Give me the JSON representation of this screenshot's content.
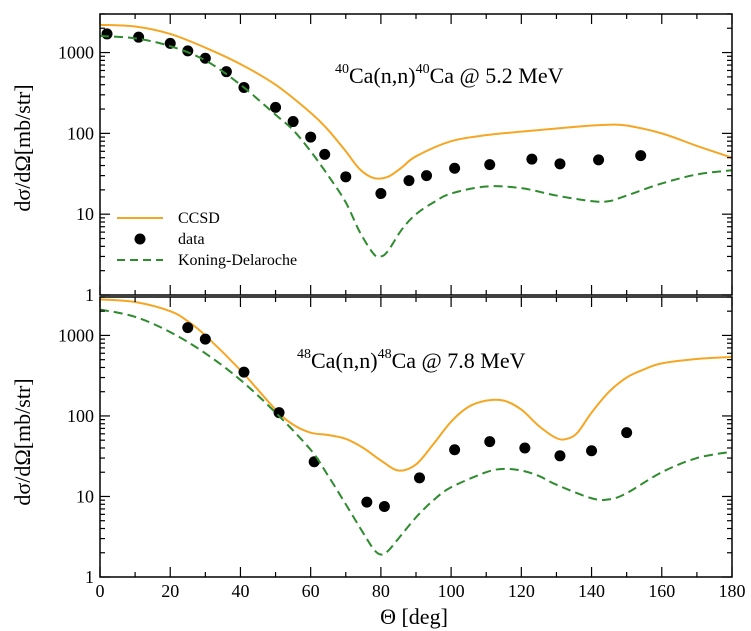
{
  "chart_data": [
    {
      "type": "line",
      "title_parts": {
        "a_mass": "40",
        "a_text": "Ca(n,n)",
        "b_mass": "40",
        "b_text": "Ca @ 5.2 MeV"
      },
      "xlabel": "",
      "ylabel": "dσ/dΩ[mb/str]",
      "xlim": [
        0,
        180
      ],
      "ylim": [
        1,
        3000
      ],
      "yscale": "log",
      "yticks": [
        1,
        10,
        100,
        1000
      ],
      "ytick_labels": [
        "1",
        "10",
        "100",
        "1000"
      ],
      "grid": false,
      "legend": {
        "placement": "bottom-left",
        "entries": [
          "CCSD",
          "data",
          "Koning-Delaroche"
        ]
      },
      "series": [
        {
          "name": "CCSD",
          "style": "solid",
          "color": "#f5a623",
          "x": [
            0,
            10,
            20,
            30,
            40,
            50,
            60,
            65,
            70,
            74,
            78,
            82,
            86,
            90,
            100,
            110,
            120,
            130,
            140,
            145,
            150,
            160,
            170,
            180
          ],
          "y": [
            2200,
            2100,
            1700,
            1150,
            720,
            400,
            180,
            110,
            60,
            36,
            28,
            29,
            38,
            52,
            80,
            95,
            105,
            115,
            125,
            128,
            125,
            100,
            70,
            50
          ]
        },
        {
          "name": "data",
          "style": "markers",
          "color": "#000000",
          "x": [
            2,
            11,
            20,
            25,
            30,
            36,
            41,
            50,
            55,
            60,
            64,
            70,
            80,
            88,
            93,
            101,
            111,
            123,
            131,
            142,
            154
          ],
          "y": [
            1700,
            1550,
            1300,
            1050,
            850,
            580,
            370,
            210,
            140,
            90,
            55,
            29,
            18,
            26,
            30,
            37,
            41,
            48,
            42,
            47,
            53
          ]
        },
        {
          "name": "Koning-Delaroche",
          "style": "dashed",
          "color": "#2e8b2e",
          "x": [
            0,
            10,
            20,
            30,
            40,
            50,
            55,
            60,
            65,
            70,
            74,
            78,
            80,
            82,
            86,
            90,
            95,
            100,
            110,
            120,
            130,
            140,
            145,
            150,
            160,
            170,
            180
          ],
          "y": [
            1600,
            1500,
            1200,
            800,
            400,
            170,
            110,
            60,
            30,
            14,
            6,
            3.2,
            3,
            3.5,
            6.5,
            10,
            14,
            18,
            22,
            21,
            17,
            14.5,
            14.5,
            17,
            24,
            31,
            35
          ]
        }
      ]
    },
    {
      "type": "line",
      "title_parts": {
        "a_mass": "48",
        "a_text": "Ca(n,n)",
        "b_mass": "48",
        "b_text": "Ca @ 7.8 MeV"
      },
      "xlabel": "Θ [deg]",
      "ylabel": "dσ/dΩ[mb/str]",
      "xlim": [
        0,
        180
      ],
      "ylim": [
        1,
        3000
      ],
      "yscale": "log",
      "xticks": [
        0,
        20,
        40,
        60,
        80,
        100,
        120,
        140,
        160,
        180
      ],
      "xtick_labels": [
        "0",
        "20",
        "40",
        "60",
        "80",
        "100",
        "120",
        "140",
        "160",
        "180"
      ],
      "yticks": [
        1,
        10,
        100,
        1000
      ],
      "ytick_labels": [
        "1",
        "10",
        "100",
        "1000"
      ],
      "grid": false,
      "series": [
        {
          "name": "CCSD",
          "style": "solid",
          "color": "#f5a623",
          "x": [
            0,
            10,
            20,
            25,
            30,
            40,
            50,
            55,
            60,
            65,
            70,
            75,
            80,
            85,
            90,
            95,
            100,
            105,
            110,
            115,
            120,
            125,
            130,
            133,
            136,
            140,
            145,
            150,
            155,
            160,
            170,
            180
          ],
          "y": [
            2800,
            2600,
            2000,
            1500,
            1000,
            370,
            120,
            78,
            62,
            58,
            52,
            40,
            28,
            21,
            25,
            45,
            85,
            130,
            155,
            155,
            120,
            75,
            53,
            52,
            62,
            110,
            200,
            300,
            380,
            450,
            510,
            540
          ]
        },
        {
          "name": "data",
          "style": "markers",
          "color": "#000000",
          "x": [
            25,
            30,
            41,
            51,
            61,
            76,
            81,
            91,
            101,
            111,
            121,
            131,
            140,
            150
          ],
          "y": [
            1250,
            900,
            350,
            110,
            27,
            8.5,
            7.5,
            17,
            38,
            48,
            40,
            32,
            37,
            62
          ]
        },
        {
          "name": "Koning-Delaroche",
          "style": "dashed",
          "color": "#2e8b2e",
          "x": [
            0,
            10,
            20,
            30,
            40,
            50,
            60,
            65,
            70,
            75,
            78,
            80,
            82,
            85,
            90,
            95,
            100,
            110,
            115,
            120,
            125,
            130,
            140,
            145,
            150,
            160,
            170,
            180
          ],
          "y": [
            2100,
            1700,
            1100,
            600,
            280,
            110,
            38,
            18,
            8,
            3.5,
            2.2,
            1.9,
            2.1,
            3,
            5.5,
            9,
            13,
            20,
            22,
            21,
            18,
            14,
            9.5,
            9.2,
            11,
            20,
            30,
            36
          ]
        }
      ]
    }
  ]
}
